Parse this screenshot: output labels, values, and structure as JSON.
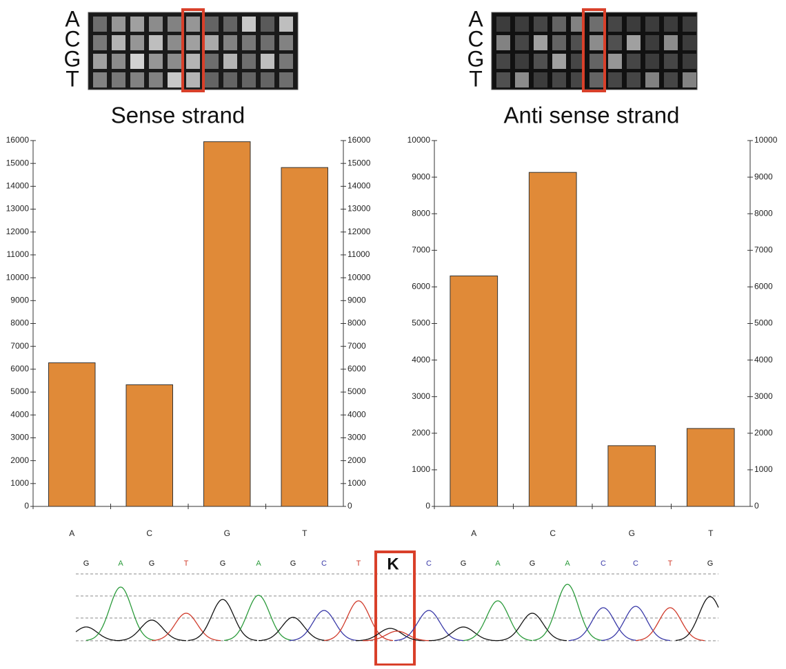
{
  "chart_data": [
    {
      "type": "bar",
      "title": "Sense strand",
      "categories": [
        "A",
        "C",
        "G",
        "T"
      ],
      "values": [
        6280,
        5320,
        15950,
        14820
      ],
      "color": "#e08a38",
      "ylim": [
        0,
        16000
      ],
      "yticks": [
        0,
        1000,
        2000,
        3000,
        4000,
        5000,
        6000,
        7000,
        8000,
        9000,
        10000,
        11000,
        12000,
        13000,
        14000,
        15000,
        16000
      ],
      "y2lim": [
        0,
        16000
      ],
      "y2ticks": [
        0,
        1000,
        2000,
        3000,
        4000,
        5000,
        6000,
        7000,
        8000,
        9000,
        10000,
        11000,
        12000,
        13000,
        14000,
        15000,
        16000
      ]
    },
    {
      "type": "bar",
      "title": "Anti sense strand",
      "categories": [
        "A",
        "C",
        "G",
        "T"
      ],
      "values": [
        6300,
        9130,
        1660,
        2130
      ],
      "color": "#e08a38",
      "ylim": [
        0,
        10000
      ],
      "yticks": [
        0,
        1000,
        2000,
        3000,
        4000,
        5000,
        6000,
        7000,
        8000,
        9000,
        10000
      ],
      "y2lim": [
        0,
        10000
      ],
      "y2ticks": [
        0,
        1000,
        2000,
        3000,
        4000,
        5000,
        6000,
        7000,
        8000,
        9000,
        10000
      ]
    }
  ],
  "array_labels": [
    "A",
    "C",
    "G",
    "T"
  ],
  "sequence": [
    "G",
    "A",
    "G",
    "T",
    "G",
    "A",
    "G",
    "C",
    "T",
    "K",
    "C",
    "G",
    "A",
    "G",
    "A",
    "C",
    "C",
    "T",
    "G"
  ]
}
